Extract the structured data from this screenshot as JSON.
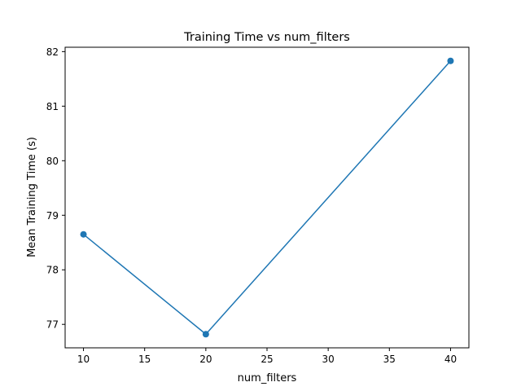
{
  "chart_data": {
    "type": "line",
    "title": "Training Time vs num_filters",
    "xlabel": "num_filters",
    "ylabel": "Mean Training Time (s)",
    "x": [
      10,
      20,
      40
    ],
    "series": [
      {
        "values": [
          78.65,
          76.82,
          81.83
        ],
        "color": "#1f77b4",
        "marker": "circle"
      }
    ],
    "xlim": [
      8.5,
      41.5
    ],
    "ylim": [
      76.57,
      82.08
    ],
    "xticks": [
      10,
      15,
      20,
      25,
      30,
      35,
      40
    ],
    "yticks": [
      77,
      78,
      79,
      80,
      81,
      82
    ],
    "grid": false
  }
}
